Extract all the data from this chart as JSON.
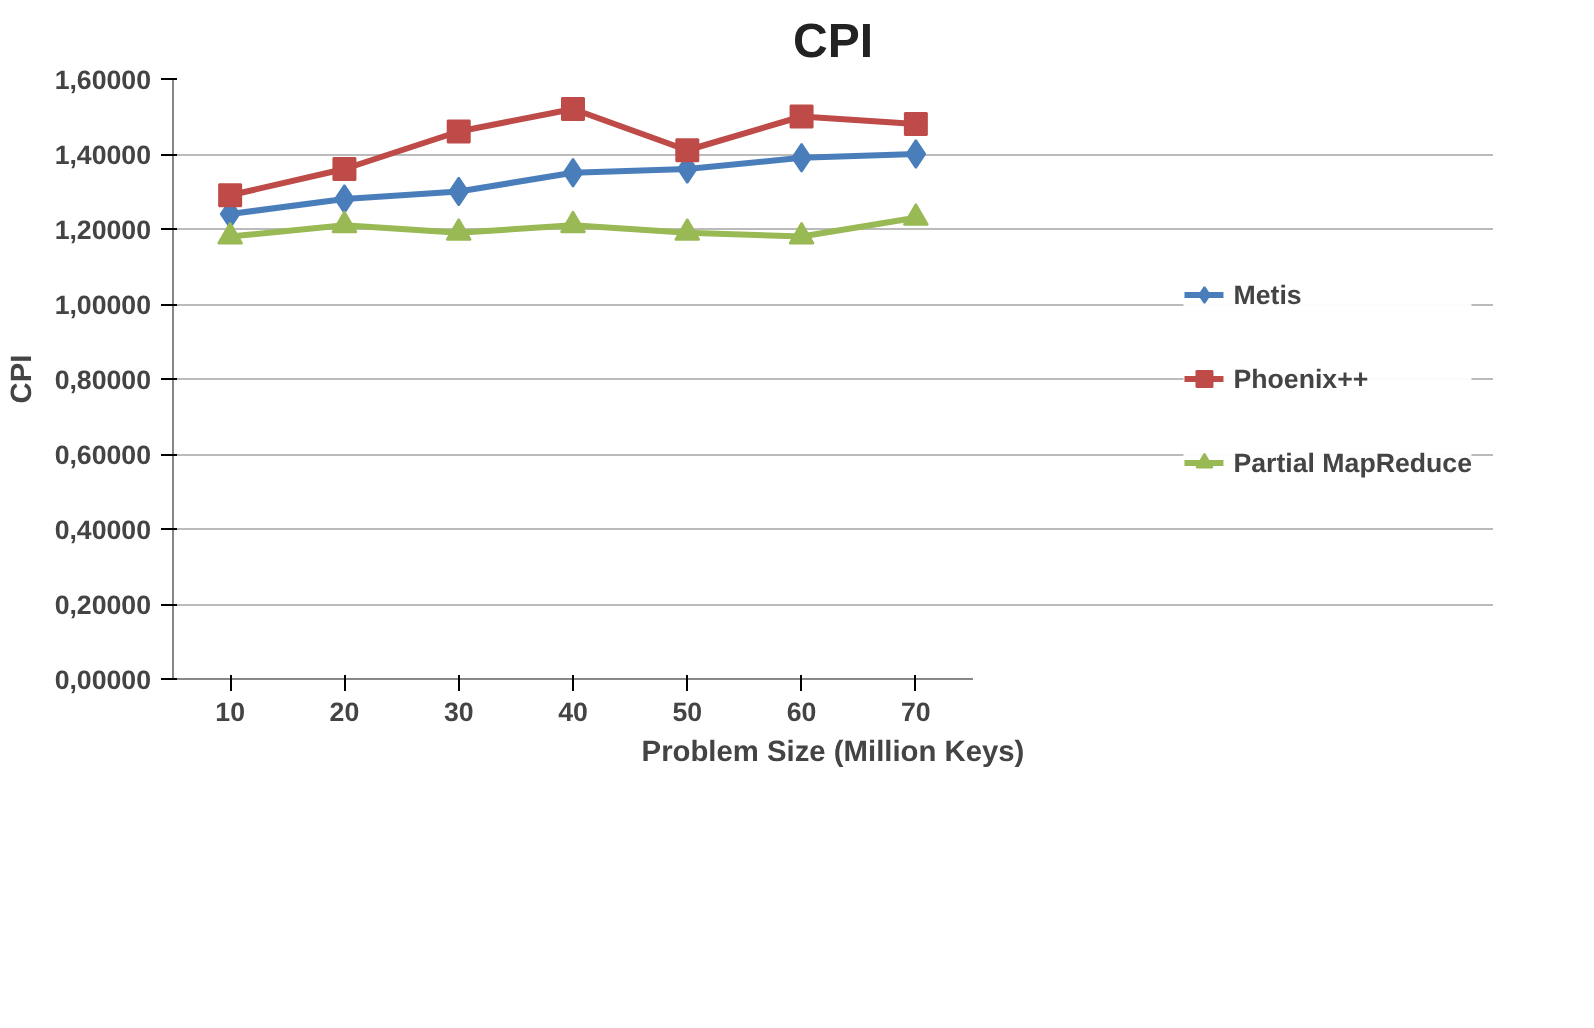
{
  "chart_data": {
    "type": "line",
    "title": "CPI",
    "xlabel": "Problem Size (Million Keys)",
    "ylabel": "CPI",
    "categories": [
      "10",
      "20",
      "30",
      "40",
      "50",
      "60",
      "70"
    ],
    "series": [
      {
        "name": "Metis",
        "color": "#4a7ebb",
        "marker": "diamond",
        "values": [
          1.24,
          1.28,
          1.3,
          1.35,
          1.36,
          1.39,
          1.4
        ]
      },
      {
        "name": "Phoenix++",
        "color": "#be4b48",
        "marker": "square",
        "values": [
          1.29,
          1.36,
          1.46,
          1.52,
          1.41,
          1.5,
          1.48
        ]
      },
      {
        "name": "Partial MapReduce",
        "color": "#98b954",
        "marker": "triangle",
        "values": [
          1.18,
          1.21,
          1.19,
          1.21,
          1.19,
          1.18,
          1.23
        ]
      }
    ],
    "ylim": [
      0,
      1.6
    ],
    "yticks": [
      {
        "value": 0,
        "label": "0,00000"
      },
      {
        "value": 0.2,
        "label": "0,20000"
      },
      {
        "value": 0.4,
        "label": "0,40000"
      },
      {
        "value": 0.6,
        "label": "0,60000"
      },
      {
        "value": 0.8,
        "label": "0,80000"
      },
      {
        "value": 1.0,
        "label": "1,00000"
      },
      {
        "value": 1.2,
        "label": "1,20000"
      },
      {
        "value": 1.4,
        "label": "1,40000"
      },
      {
        "value": 1.6,
        "label": "1,60000"
      }
    ],
    "grid": "y",
    "legend": "right"
  }
}
